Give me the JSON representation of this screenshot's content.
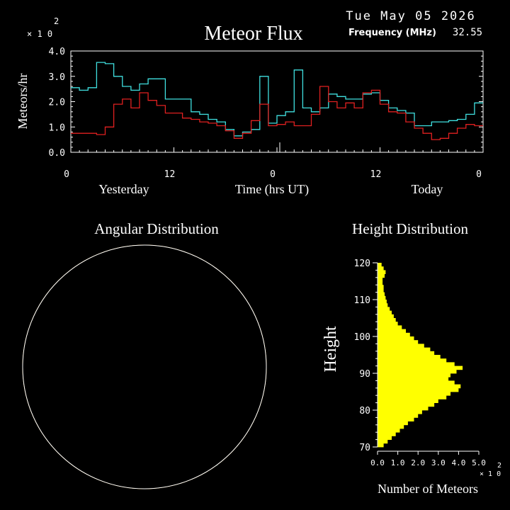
{
  "header": {
    "date": "Tue May 05 2026",
    "title": "Meteor Flux",
    "frequency_label": "Frequency (MHz)",
    "frequency_value": "32.55"
  },
  "colors": {
    "background": "#000000",
    "axis": "#ffffff",
    "series_cyan": "#40e0e0",
    "series_red": "#e02020",
    "height_bars": "#ffff00",
    "grid_orange": "#e0a020"
  },
  "chart_data": [
    {
      "type": "line",
      "title": "Meteor Flux",
      "ylabel": "Meteors/hr",
      "xlabel": "Time (hrs UT)",
      "y_multiplier": "×10^2",
      "y_mult_base": "× 1 0",
      "y_mult_exp": "2",
      "ylim": [
        0,
        4.0
      ],
      "yticks": [
        "0.0",
        "1.0",
        "2.0",
        "3.0",
        "4.0"
      ],
      "xlim": [
        0,
        48
      ],
      "xticks": [
        {
          "x": 0,
          "label": "0"
        },
        {
          "x": 12,
          "label": "12"
        },
        {
          "x": 24,
          "label": "0"
        },
        {
          "x": 36,
          "label": "12"
        },
        {
          "x": 48,
          "label": "0"
        }
      ],
      "day_labels": {
        "left": "Yesterday",
        "right": "Today"
      },
      "step": true,
      "series": [
        {
          "color": "#40e0e0",
          "values": [
            2.55,
            2.45,
            2.55,
            3.55,
            3.5,
            3.0,
            2.6,
            2.45,
            2.7,
            2.9,
            2.9,
            2.1,
            2.1,
            2.1,
            1.6,
            1.5,
            1.3,
            1.2,
            0.9,
            0.65,
            0.8,
            0.9,
            3.0,
            1.15,
            1.45,
            1.6,
            3.25,
            1.75,
            1.6,
            1.75,
            2.3,
            2.2,
            2.1,
            2.1,
            2.3,
            2.35,
            2.05,
            1.75,
            1.65,
            1.55,
            1.05,
            1.05,
            1.2,
            1.2,
            1.25,
            1.3,
            1.5,
            1.95
          ]
        },
        {
          "color": "#e02020",
          "values": [
            0.75,
            0.75,
            0.75,
            0.7,
            1.0,
            1.9,
            2.1,
            1.75,
            2.35,
            2.05,
            1.85,
            1.55,
            1.55,
            1.35,
            1.3,
            1.2,
            1.15,
            1.05,
            0.85,
            0.55,
            0.75,
            1.25,
            1.9,
            1.05,
            1.1,
            1.2,
            1.05,
            1.05,
            1.5,
            2.6,
            2.0,
            1.75,
            1.95,
            1.75,
            2.35,
            2.45,
            1.9,
            1.6,
            1.55,
            1.2,
            0.95,
            0.75,
            0.5,
            0.55,
            0.75,
            0.95,
            1.1,
            1.05
          ]
        }
      ]
    },
    {
      "type": "other",
      "title": "Angular Distribution",
      "description_colors": [
        "#40e0e0",
        "#e02020"
      ]
    },
    {
      "type": "bar",
      "orientation": "horizontal",
      "title": "Height Distribution",
      "ylabel": "Height",
      "xlabel": "Number of Meteors",
      "x_multiplier": "×10^2",
      "x_mult_base": "× 1 0",
      "x_mult_exp": "2",
      "xlim": [
        0,
        5.0
      ],
      "xticks": [
        "0.0",
        "1.0",
        "2.0",
        "3.0",
        "4.0",
        "5.0"
      ],
      "ylim": [
        70,
        120
      ],
      "yticks": [
        "70",
        "80",
        "90",
        "100",
        "110",
        "120"
      ],
      "color": "#ffff00",
      "heights": [
        70,
        71,
        72,
        73,
        74,
        75,
        76,
        77,
        78,
        79,
        80,
        81,
        82,
        83,
        84,
        85,
        86,
        87,
        88,
        89,
        90,
        91,
        92,
        93,
        94,
        95,
        96,
        97,
        98,
        99,
        100,
        101,
        102,
        103,
        104,
        105,
        106,
        107,
        108,
        109,
        110,
        111,
        112,
        113,
        114,
        115,
        116,
        117,
        118,
        119
      ],
      "values": [
        0.3,
        0.5,
        0.7,
        0.9,
        1.1,
        1.3,
        1.5,
        1.8,
        2.0,
        2.2,
        2.5,
        2.8,
        3.0,
        3.4,
        3.6,
        4.0,
        4.1,
        3.8,
        3.5,
        3.6,
        3.9,
        4.2,
        3.8,
        3.4,
        3.1,
        2.8,
        2.6,
        2.3,
        2.0,
        1.8,
        1.6,
        1.4,
        1.2,
        1.0,
        0.9,
        0.8,
        0.7,
        0.6,
        0.5,
        0.45,
        0.4,
        0.35,
        0.3,
        0.3,
        0.25,
        0.25,
        0.35,
        0.4,
        0.3,
        0.2
      ]
    }
  ]
}
